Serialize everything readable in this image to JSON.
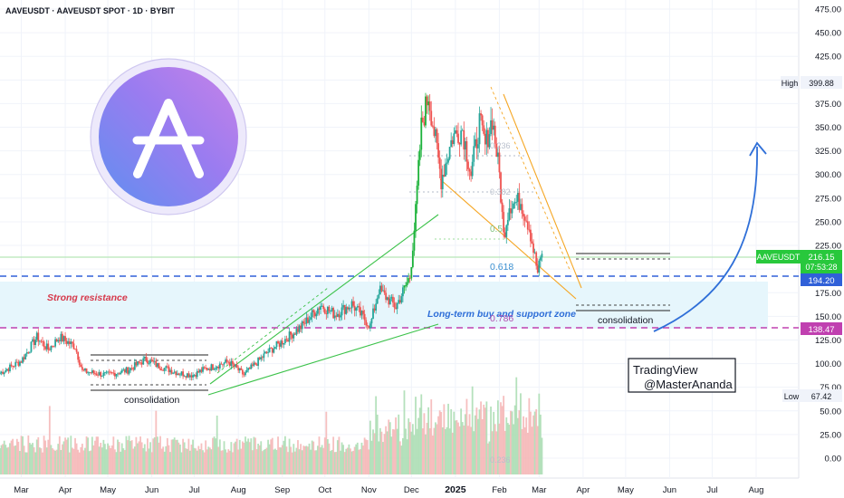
{
  "header": {
    "symbol_title": "AAVEUSDT · AAVEUSDT SPOT · 1D · BYBIT"
  },
  "colors": {
    "up": "#26a69a",
    "up_bright": "#1bb23a",
    "down": "#ef5350",
    "resistance_line": "#3060d8",
    "support_line": "#c040b0",
    "zone_fill": "#e6f6fc",
    "trend_green": "#3cc24a",
    "wedge_orange": "#f5a623",
    "projection_arrow": "#2f6fd8",
    "price_tag": "#28c83c",
    "grid": "#f0f3fa",
    "fib_text": "#5aaed0",
    "fib_786": "#b04fb0",
    "watermark_ring": "#c9c3ef"
  },
  "chart_data": {
    "type": "candlestick",
    "y_axis": {
      "ticks": [
        "475.00",
        "450.00",
        "425.00",
        "400.00",
        "375.00",
        "350.00",
        "325.00",
        "300.00",
        "275.00",
        "250.00",
        "225.00",
        "200.00",
        "175.00",
        "150.00",
        "125.00",
        "100.00",
        "75.00",
        "50.00",
        "25.00",
        "0.00"
      ],
      "range": [
        -15,
        480
      ]
    },
    "x_axis": {
      "ticks": [
        "Mar",
        "Apr",
        "May",
        "Jun",
        "Jul",
        "Aug",
        "Sep",
        "Oct",
        "Nov",
        "Dec",
        "2025",
        "Feb",
        "Mar",
        "Apr",
        "May",
        "Jun",
        "Jul",
        "Aug"
      ],
      "range": [
        "2024-02-15",
        "2025-08-31"
      ]
    },
    "price_path": [
      [
        "2024-02-15",
        90
      ],
      [
        "2024-03-01",
        103
      ],
      [
        "2024-03-12",
        128
      ],
      [
        "2024-03-20",
        115
      ],
      [
        "2024-03-28",
        128
      ],
      [
        "2024-04-08",
        118
      ],
      [
        "2024-04-13",
        92
      ],
      [
        "2024-04-30",
        88
      ],
      [
        "2024-05-15",
        93
      ],
      [
        "2024-05-28",
        105
      ],
      [
        "2024-06-05",
        98
      ],
      [
        "2024-06-20",
        90
      ],
      [
        "2024-06-30",
        88
      ],
      [
        "2024-07-08",
        94
      ],
      [
        "2024-07-25",
        102
      ],
      [
        "2024-08-05",
        88
      ],
      [
        "2024-08-20",
        110
      ],
      [
        "2024-09-05",
        128
      ],
      [
        "2024-09-15",
        140
      ],
      [
        "2024-09-28",
        162
      ],
      [
        "2024-10-08",
        152
      ],
      [
        "2024-10-20",
        163
      ],
      [
        "2024-11-02",
        140
      ],
      [
        "2024-11-08",
        178
      ],
      [
        "2024-11-20",
        160
      ],
      [
        "2024-11-30",
        192
      ],
      [
        "2024-12-04",
        260
      ],
      [
        "2024-12-08",
        350
      ],
      [
        "2024-12-13",
        385
      ],
      [
        "2024-12-17",
        345
      ],
      [
        "2024-12-22",
        295
      ],
      [
        "2024-12-30",
        340
      ],
      [
        "2025-01-06",
        348
      ],
      [
        "2025-01-12",
        300
      ],
      [
        "2025-01-18",
        355
      ],
      [
        "2025-01-22",
        330
      ],
      [
        "2025-01-27",
        360
      ],
      [
        "2025-02-01",
        300
      ],
      [
        "2025-02-04",
        235
      ],
      [
        "2025-02-08",
        268
      ],
      [
        "2025-02-16",
        272
      ],
      [
        "2025-02-22",
        245
      ],
      [
        "2025-02-28",
        196
      ],
      [
        "2025-03-03",
        216
      ]
    ],
    "last_price": 216.15,
    "high": 399.88,
    "low": 67.42,
    "levels": [
      {
        "name": "resistance",
        "value": 194.2
      },
      {
        "name": "support",
        "value": 138.47
      }
    ],
    "fib_levels": [
      {
        "label": "0.5",
        "value": 236
      },
      {
        "label": "0.618",
        "value": 198
      },
      {
        "label": "0.786",
        "value": 143
      }
    ],
    "faded_fib_labels": [
      "0.236",
      "0.382",
      "0.236"
    ],
    "volume_scale_max": 88
  },
  "labels": {
    "price_tag_symbol": "AAVEUSDT",
    "price_tag_value": "216.15",
    "price_tag_timer": "07:53:28",
    "resistance_tag": "194.20",
    "support_tag": "138.47",
    "high_label": "High",
    "high_value": "399.88",
    "low_label": "Low",
    "low_value": "67.42",
    "strong_resistance": "Strong resistance",
    "buy_zone": "Long-term buy and support zone",
    "consolidation_left": "consolidation",
    "consolidation_right": "consolidation",
    "fib_05": "0.5",
    "fib_0618": "0.618",
    "fib_0786": "0.786",
    "fib_0236_top": "0.236",
    "fib_0382": "0.382",
    "fib_0236_vol": "0.236",
    "signature_line1": "TradingView",
    "signature_line2": "@MasterAnanda"
  }
}
